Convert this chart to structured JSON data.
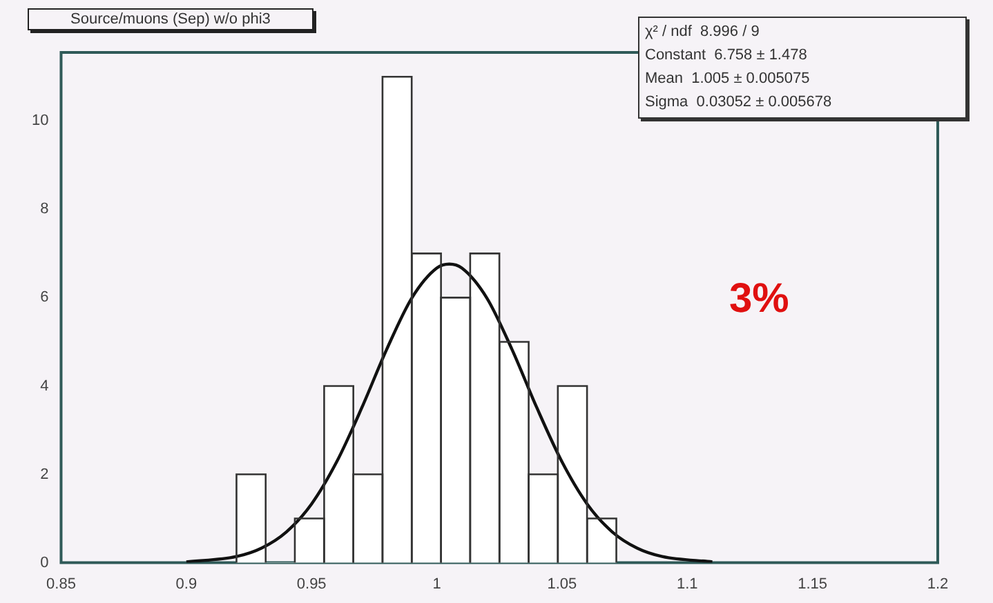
{
  "chart_data": {
    "type": "histogram",
    "title": "Source/muons (Sep) w/o phi3",
    "bins": [
      0.92,
      0.9317,
      0.9433,
      0.955,
      0.9667,
      0.9783,
      0.99,
      1.0017,
      1.0133,
      1.025,
      1.0367,
      1.0483,
      1.06,
      1.0717
    ],
    "values": [
      2,
      0,
      1,
      4,
      2,
      11,
      7,
      6,
      7,
      5,
      2,
      4,
      1
    ],
    "color": "#ffffff",
    "series": [
      {
        "type": "line",
        "color": "#111111",
        "x": [
          0.9,
          0.92,
          0.93,
          0.94,
          0.95,
          0.96,
          0.97,
          0.98,
          0.99,
          1.0,
          1.005,
          1.01,
          1.02,
          1.03,
          1.04,
          1.05,
          1.06,
          1.07,
          1.08,
          1.09,
          1.11
        ],
        "values": [
          0.02,
          0.14,
          0.33,
          0.7,
          1.33,
          2.28,
          3.5,
          4.83,
          5.99,
          6.67,
          6.76,
          6.67,
          5.99,
          4.83,
          3.5,
          2.28,
          1.33,
          0.7,
          0.33,
          0.14,
          0.02
        ]
      }
    ],
    "xlim": [
      0.85,
      1.2
    ],
    "xticks": [
      {
        "value": 0.85,
        "label": "0.85"
      },
      0.9,
      0.95,
      1,
      1.05,
      1.1,
      1.15,
      1.2
    ],
    "ylim": [
      0,
      11.55
    ],
    "yticks": [
      0,
      2,
      4,
      6,
      8,
      10
    ],
    "grid": false,
    "legend": false,
    "marker": "none",
    "annotations": [
      "χ² / ndf  8.996 / 9",
      "Constant  6.758 ± 1.478",
      "Mean  1.005 ± 0.005075",
      "Sigma  0.03052 ± 0.005678",
      "3%"
    ]
  }
}
